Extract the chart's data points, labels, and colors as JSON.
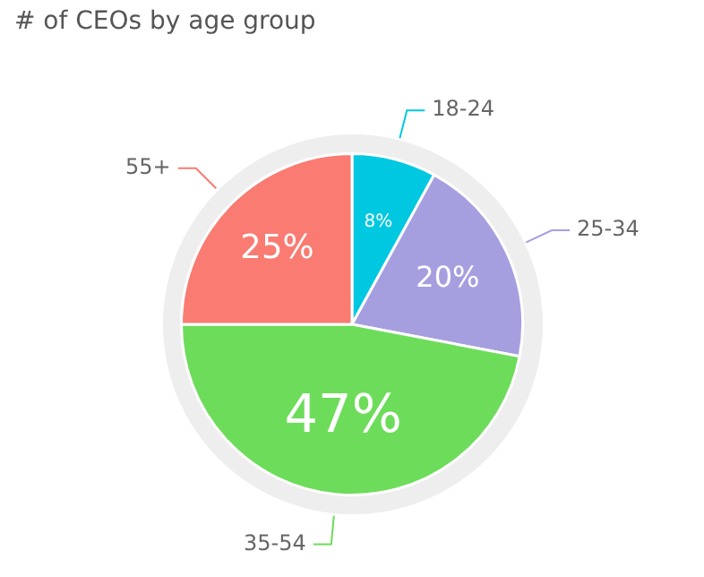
{
  "chart_data": {
    "type": "pie",
    "title": "# of CEOs by age group",
    "categories": [
      "18-24",
      "25-34",
      "35-54",
      "55+"
    ],
    "values": [
      8,
      20,
      47,
      25
    ],
    "colors": [
      "#00c8e0",
      "#a59fe0",
      "#6ddc5a",
      "#f97b72"
    ],
    "value_labels": [
      "8%",
      "20%",
      "47%",
      "25%"
    ],
    "legend": false
  }
}
